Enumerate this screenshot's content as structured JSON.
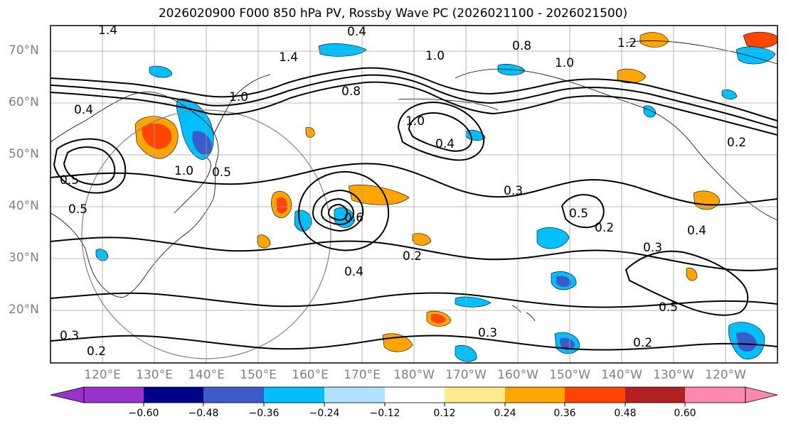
{
  "title": "2026020900 F000 850 hPa PV, Rossby Wave PC (2026021100 - 2026021500)",
  "map": {
    "lat_labels": [
      "70°N",
      "60°N",
      "50°N",
      "40°N",
      "30°N",
      "20°N"
    ],
    "lon_labels": [
      "120°E",
      "130°E",
      "140°E",
      "150°E",
      "160°E",
      "170°E",
      "180°W",
      "170°W",
      "160°W",
      "150°W",
      "140°W",
      "130°W",
      "120°W"
    ],
    "contour_labels": [
      "1.4",
      "0.4",
      "1.4",
      "1.0",
      "0.8",
      "1.0",
      "1.2",
      "1.0",
      "0.8",
      "0.4",
      "1.0",
      "0.5",
      "0.3",
      "0.6",
      "1.0",
      "0.5",
      "0.2",
      "0.3",
      "0.5",
      "0.2",
      "0.3",
      "0.4",
      "0.2",
      "0.3",
      "0.5",
      "0.2",
      "0.4",
      "0.5",
      "0.2",
      "0.4"
    ]
  },
  "colorbar": {
    "colors": [
      "#9932cc",
      "#00008b",
      "#3a5bc8",
      "#00bfff",
      "#b0e2ff",
      "#ffffff",
      "#ffeb8c",
      "#ffa500",
      "#ff4500",
      "#b22222",
      "#ff88b0"
    ],
    "tick_labels": [
      "−0.60",
      "−0.48",
      "−0.36",
      "−0.24",
      "−0.12",
      "0.12",
      "0.24",
      "0.36",
      "0.48",
      "0.60"
    ]
  }
}
